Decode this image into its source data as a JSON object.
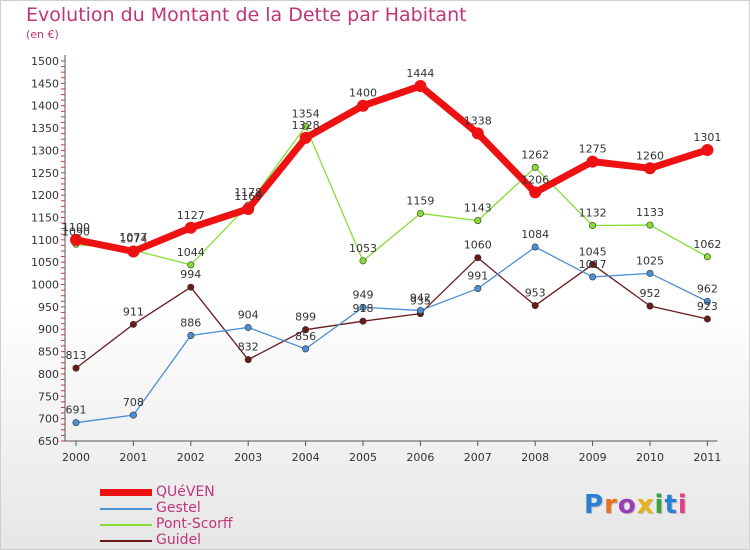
{
  "title": "Evolution du Montant de la Dette par Habitant",
  "subtitle": "(en €)",
  "logo": "Proxiti",
  "chart_data": {
    "type": "line",
    "x": [
      "2000",
      "2001",
      "2002",
      "2003",
      "2004",
      "2005",
      "2006",
      "2007",
      "2008",
      "2009",
      "2010",
      "2011"
    ],
    "ylim": [
      650,
      1500
    ],
    "yticks": [
      "650",
      "700",
      "750",
      "800",
      "850",
      "900",
      "950",
      "1000",
      "1050",
      "1100",
      "1150",
      "1200",
      "1250",
      "1300",
      "1350",
      "1400",
      "1450",
      "1500"
    ],
    "grid": false,
    "legend_position": "bottom-left",
    "series": [
      {
        "name": "QUéVEN",
        "color": "#ee1111",
        "values": [
          1100,
          1074,
          1127,
          1169,
          1328,
          1400,
          1444,
          1338,
          1206,
          1275,
          1260,
          1301
        ],
        "labels": [
          "1100",
          "1074",
          "1127",
          "1169",
          "1328",
          "1400",
          "1444",
          "1338",
          "1206",
          "1275",
          "1260",
          "1301"
        ]
      },
      {
        "name": "Gestel",
        "color": "#4b8fd4",
        "values": [
          691,
          708,
          886,
          904,
          856,
          949,
          942,
          991,
          1084,
          1017,
          1025,
          962
        ],
        "labels": [
          "691",
          "708",
          "886",
          "904",
          "856",
          "949",
          "942",
          "991",
          "1084",
          "1017",
          "1025",
          "962"
        ]
      },
      {
        "name": "Pont-Scorff",
        "color": "#88dd33",
        "values": [
          1090,
          1077,
          1044,
          1178,
          1354,
          1053,
          1159,
          1143,
          1262,
          1132,
          1133,
          1062
        ],
        "labels": [
          "1090",
          "1077",
          "1044",
          "1178",
          "1354",
          "1053",
          "1159",
          "1143",
          "1262",
          "1132",
          "1133",
          "1062"
        ]
      },
      {
        "name": "Guidel",
        "color": "#6b1a1a",
        "values": [
          813,
          911,
          994,
          832,
          899,
          918,
          935,
          1060,
          953,
          1045,
          952,
          923
        ],
        "labels": [
          "813",
          "911",
          "994",
          "832",
          "899",
          "918",
          "935",
          "1060",
          "953",
          "1045",
          "952",
          "923"
        ]
      }
    ]
  }
}
